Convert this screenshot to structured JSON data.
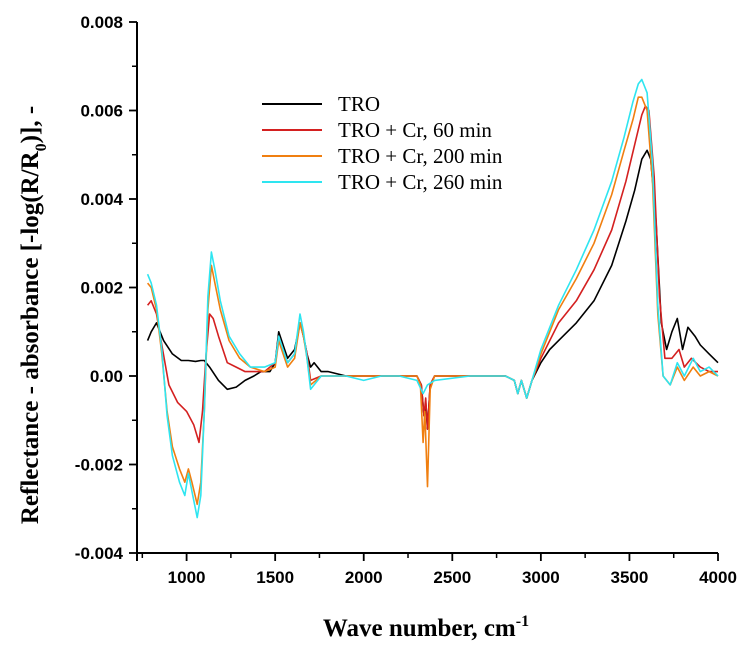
{
  "chart_data": {
    "type": "line",
    "xlabel": "Wave number, cm",
    "xlabel_superscript": "-1",
    "ylabel_parts": [
      "Reflectance - absorbance [-log(R/R",
      "0",
      ")], -"
    ],
    "xlim": [
      720,
      4000
    ],
    "ylim": [
      -0.004,
      0.008
    ],
    "x_ticks": [
      {
        "value": 1000,
        "label": "1000"
      },
      {
        "value": 1500,
        "label": "1500"
      },
      {
        "value": 2000,
        "label": "2000"
      },
      {
        "value": 2500,
        "label": "2500"
      },
      {
        "value": 3000,
        "label": "3000"
      },
      {
        "value": 3500,
        "label": "3500"
      },
      {
        "value": 4000,
        "label": "4000"
      }
    ],
    "y_ticks": [
      {
        "value": -0.004,
        "label": "-0.004"
      },
      {
        "value": -0.002,
        "label": "-0.002"
      },
      {
        "value": 0.0,
        "label": "0.00"
      },
      {
        "value": 0.002,
        "label": "0.002"
      },
      {
        "value": 0.004,
        "label": "0.004"
      },
      {
        "value": 0.006,
        "label": "0.006"
      },
      {
        "value": 0.008,
        "label": "0.008"
      }
    ],
    "legend_position": "upper-left-center",
    "grid": false,
    "series": [
      {
        "name": "TRO",
        "color": "#000000",
        "points": [
          [
            780,
            0.0008
          ],
          [
            800,
            0.001
          ],
          [
            830,
            0.0012
          ],
          [
            870,
            0.0008
          ],
          [
            920,
            0.0005
          ],
          [
            970,
            0.00035
          ],
          [
            1010,
            0.00035
          ],
          [
            1050,
            0.00033
          ],
          [
            1080,
            0.00035
          ],
          [
            1100,
            0.00035
          ],
          [
            1130,
            0.0002
          ],
          [
            1180,
            -0.0001
          ],
          [
            1230,
            -0.0003
          ],
          [
            1280,
            -0.00025
          ],
          [
            1330,
            -0.0001
          ],
          [
            1380,
            0.0
          ],
          [
            1420,
            0.0001
          ],
          [
            1470,
            0.0001
          ],
          [
            1500,
            0.0003
          ],
          [
            1520,
            0.001
          ],
          [
            1545,
            0.0007
          ],
          [
            1570,
            0.0004
          ],
          [
            1610,
            0.0006
          ],
          [
            1640,
            0.0012
          ],
          [
            1660,
            0.0009
          ],
          [
            1680,
            0.0005
          ],
          [
            1700,
            0.0002
          ],
          [
            1720,
            0.0003
          ],
          [
            1760,
            0.0001
          ],
          [
            1800,
            0.0001
          ],
          [
            1900,
            0.0
          ],
          [
            2000,
            0.0
          ],
          [
            2100,
            0.0
          ],
          [
            2200,
            0.0
          ],
          [
            2300,
            0.0
          ],
          [
            2325,
            -0.0002
          ],
          [
            2340,
            -0.0009
          ],
          [
            2350,
            -0.0006
          ],
          [
            2360,
            -0.0012
          ],
          [
            2375,
            -0.0002
          ],
          [
            2400,
            0.0
          ],
          [
            2500,
            0.0
          ],
          [
            2600,
            0.0
          ],
          [
            2700,
            0.0
          ],
          [
            2800,
            0.0
          ],
          [
            2850,
            -0.0001
          ],
          [
            2870,
            -0.0004
          ],
          [
            2890,
            -0.0001
          ],
          [
            2920,
            -0.0005
          ],
          [
            2950,
            -0.0001
          ],
          [
            3000,
            0.0003
          ],
          [
            3050,
            0.0006
          ],
          [
            3100,
            0.0008
          ],
          [
            3200,
            0.0012
          ],
          [
            3300,
            0.0017
          ],
          [
            3400,
            0.0025
          ],
          [
            3480,
            0.0035
          ],
          [
            3530,
            0.0042
          ],
          [
            3570,
            0.0049
          ],
          [
            3600,
            0.0051
          ],
          [
            3620,
            0.0049
          ],
          [
            3650,
            0.0035
          ],
          [
            3680,
            0.0012
          ],
          [
            3710,
            0.0006
          ],
          [
            3740,
            0.001
          ],
          [
            3770,
            0.0013
          ],
          [
            3800,
            0.0006
          ],
          [
            3830,
            0.0011
          ],
          [
            3870,
            0.0009
          ],
          [
            3900,
            0.0007
          ],
          [
            3950,
            0.0005
          ],
          [
            4000,
            0.0003
          ]
        ]
      },
      {
        "name": "TRO + Cr, 60 min",
        "color": "#d42020",
        "points": [
          [
            780,
            0.0016
          ],
          [
            800,
            0.0017
          ],
          [
            830,
            0.0014
          ],
          [
            860,
            0.0007
          ],
          [
            900,
            -0.0002
          ],
          [
            950,
            -0.0006
          ],
          [
            1000,
            -0.0008
          ],
          [
            1040,
            -0.0011
          ],
          [
            1070,
            -0.0015
          ],
          [
            1090,
            -0.0008
          ],
          [
            1110,
            0.0005
          ],
          [
            1130,
            0.0014
          ],
          [
            1150,
            0.0013
          ],
          [
            1180,
            0.0009
          ],
          [
            1230,
            0.0003
          ],
          [
            1280,
            0.0002
          ],
          [
            1330,
            0.0001
          ],
          [
            1380,
            0.0001
          ],
          [
            1440,
            0.0001
          ],
          [
            1500,
            0.0003
          ],
          [
            1520,
            0.0009
          ],
          [
            1545,
            0.0006
          ],
          [
            1570,
            0.0003
          ],
          [
            1610,
            0.0005
          ],
          [
            1640,
            0.0012
          ],
          [
            1660,
            0.0009
          ],
          [
            1680,
            0.0005
          ],
          [
            1700,
            -0.0001
          ],
          [
            1760,
            0.0
          ],
          [
            1900,
            0.0
          ],
          [
            2000,
            0.0
          ],
          [
            2100,
            0.0
          ],
          [
            2200,
            0.0
          ],
          [
            2300,
            0.0
          ],
          [
            2325,
            -0.0002
          ],
          [
            2340,
            -0.0009
          ],
          [
            2350,
            -0.0005
          ],
          [
            2360,
            -0.0012
          ],
          [
            2375,
            -0.0002
          ],
          [
            2400,
            0.0
          ],
          [
            2600,
            0.0
          ],
          [
            2800,
            0.0
          ],
          [
            2850,
            -0.0001
          ],
          [
            2870,
            -0.0004
          ],
          [
            2890,
            -0.0001
          ],
          [
            2920,
            -0.0005
          ],
          [
            2950,
            -0.0001
          ],
          [
            3000,
            0.0004
          ],
          [
            3100,
            0.0012
          ],
          [
            3200,
            0.0017
          ],
          [
            3300,
            0.0024
          ],
          [
            3400,
            0.0033
          ],
          [
            3480,
            0.0044
          ],
          [
            3540,
            0.0054
          ],
          [
            3570,
            0.0059
          ],
          [
            3590,
            0.0061
          ],
          [
            3610,
            0.006
          ],
          [
            3640,
            0.0045
          ],
          [
            3670,
            0.0018
          ],
          [
            3700,
            0.0004
          ],
          [
            3740,
            0.0004
          ],
          [
            3780,
            0.0006
          ],
          [
            3810,
            0.0002
          ],
          [
            3850,
            0.0004
          ],
          [
            3900,
            0.0002
          ],
          [
            3950,
            0.0001
          ],
          [
            4000,
            0.0001
          ]
        ]
      },
      {
        "name": "TRO + Cr, 200 min",
        "color": "#f07f10",
        "points": [
          [
            780,
            0.0021
          ],
          [
            800,
            0.002
          ],
          [
            830,
            0.0015
          ],
          [
            860,
            0.0005
          ],
          [
            890,
            -0.0008
          ],
          [
            920,
            -0.0016
          ],
          [
            960,
            -0.0021
          ],
          [
            990,
            -0.0024
          ],
          [
            1010,
            -0.0021
          ],
          [
            1030,
            -0.0024
          ],
          [
            1060,
            -0.0029
          ],
          [
            1080,
            -0.0024
          ],
          [
            1100,
            -0.0008
          ],
          [
            1120,
            0.0015
          ],
          [
            1140,
            0.0025
          ],
          [
            1160,
            0.0021
          ],
          [
            1190,
            0.0015
          ],
          [
            1240,
            0.0008
          ],
          [
            1300,
            0.0004
          ],
          [
            1360,
            0.0002
          ],
          [
            1440,
            0.0001
          ],
          [
            1500,
            0.0002
          ],
          [
            1520,
            0.0008
          ],
          [
            1545,
            0.0005
          ],
          [
            1570,
            0.0002
          ],
          [
            1610,
            0.0004
          ],
          [
            1640,
            0.0012
          ],
          [
            1660,
            0.0009
          ],
          [
            1680,
            0.0004
          ],
          [
            1700,
            -0.0002
          ],
          [
            1760,
            0.0
          ],
          [
            1900,
            0.0
          ],
          [
            2000,
            0.0
          ],
          [
            2100,
            0.0
          ],
          [
            2200,
            0.0
          ],
          [
            2300,
            0.0
          ],
          [
            2320,
            -0.0002
          ],
          [
            2335,
            -0.0015
          ],
          [
            2345,
            -0.0008
          ],
          [
            2360,
            -0.0025
          ],
          [
            2375,
            -0.0003
          ],
          [
            2400,
            0.0
          ],
          [
            2600,
            0.0
          ],
          [
            2800,
            0.0
          ],
          [
            2850,
            -0.0001
          ],
          [
            2870,
            -0.0004
          ],
          [
            2890,
            -0.0001
          ],
          [
            2920,
            -0.0005
          ],
          [
            2950,
            -0.0001
          ],
          [
            3000,
            0.0005
          ],
          [
            3100,
            0.0015
          ],
          [
            3200,
            0.0022
          ],
          [
            3300,
            0.003
          ],
          [
            3400,
            0.0041
          ],
          [
            3470,
            0.0051
          ],
          [
            3520,
            0.0058
          ],
          [
            3550,
            0.0063
          ],
          [
            3570,
            0.0063
          ],
          [
            3600,
            0.006
          ],
          [
            3630,
            0.0044
          ],
          [
            3660,
            0.0014
          ],
          [
            3690,
            0.0
          ],
          [
            3730,
            -0.0002
          ],
          [
            3770,
            0.0002
          ],
          [
            3810,
            -0.0001
          ],
          [
            3860,
            0.0002
          ],
          [
            3900,
            0.0
          ],
          [
            3950,
            0.0001
          ],
          [
            4000,
            0.0
          ]
        ]
      },
      {
        "name": "TRO + Cr, 260 min",
        "color": "#2ee5f0",
        "points": [
          [
            780,
            0.0023
          ],
          [
            800,
            0.0021
          ],
          [
            830,
            0.0016
          ],
          [
            860,
            0.0006
          ],
          [
            890,
            -0.0009
          ],
          [
            920,
            -0.0018
          ],
          [
            960,
            -0.0024
          ],
          [
            990,
            -0.0027
          ],
          [
            1010,
            -0.0022
          ],
          [
            1030,
            -0.0026
          ],
          [
            1060,
            -0.0032
          ],
          [
            1080,
            -0.0027
          ],
          [
            1100,
            -0.0008
          ],
          [
            1120,
            0.0018
          ],
          [
            1140,
            0.0028
          ],
          [
            1160,
            0.0024
          ],
          [
            1190,
            0.0017
          ],
          [
            1240,
            0.0009
          ],
          [
            1300,
            0.0005
          ],
          [
            1360,
            0.0002
          ],
          [
            1440,
            0.0002
          ],
          [
            1500,
            0.0003
          ],
          [
            1520,
            0.0009
          ],
          [
            1545,
            0.0006
          ],
          [
            1570,
            0.0003
          ],
          [
            1610,
            0.0005
          ],
          [
            1640,
            0.0014
          ],
          [
            1660,
            0.001
          ],
          [
            1680,
            0.0004
          ],
          [
            1700,
            -0.0003
          ],
          [
            1760,
            0.0
          ],
          [
            1900,
            0.0
          ],
          [
            2000,
            -0.0001
          ],
          [
            2100,
            0.0
          ],
          [
            2200,
            0.0
          ],
          [
            2300,
            -0.0001
          ],
          [
            2335,
            -0.0004
          ],
          [
            2360,
            -0.0002
          ],
          [
            2400,
            -0.0001
          ],
          [
            2600,
            0.0
          ],
          [
            2800,
            0.0
          ],
          [
            2850,
            -0.0001
          ],
          [
            2870,
            -0.0004
          ],
          [
            2890,
            -0.0001
          ],
          [
            2920,
            -0.0005
          ],
          [
            2950,
            -0.0001
          ],
          [
            3000,
            0.0006
          ],
          [
            3100,
            0.0016
          ],
          [
            3200,
            0.0024
          ],
          [
            3300,
            0.0033
          ],
          [
            3400,
            0.0044
          ],
          [
            3470,
            0.0054
          ],
          [
            3520,
            0.0062
          ],
          [
            3550,
            0.0066
          ],
          [
            3570,
            0.0067
          ],
          [
            3600,
            0.0064
          ],
          [
            3630,
            0.0048
          ],
          [
            3660,
            0.0016
          ],
          [
            3690,
            0.0
          ],
          [
            3730,
            -0.0002
          ],
          [
            3770,
            0.0003
          ],
          [
            3810,
            0.0
          ],
          [
            3860,
            0.0004
          ],
          [
            3900,
            0.0001
          ],
          [
            3950,
            0.0002
          ],
          [
            4000,
            0.0
          ]
        ]
      }
    ]
  }
}
